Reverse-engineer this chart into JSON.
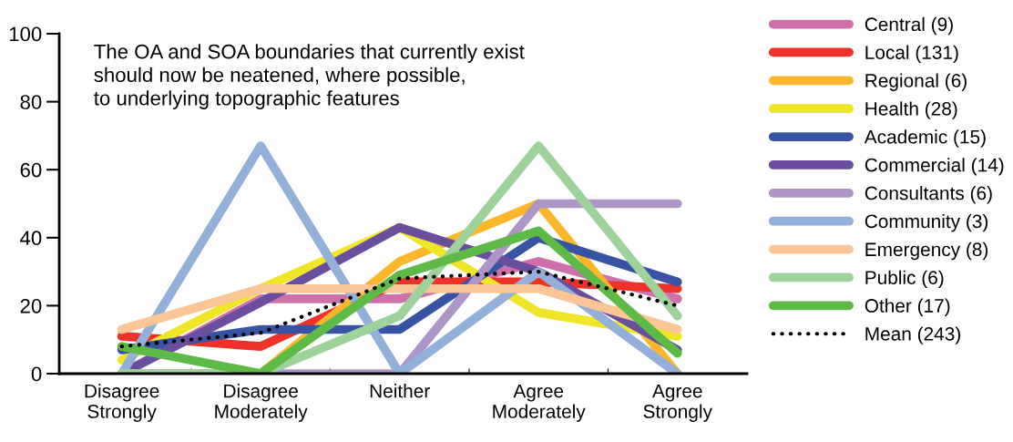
{
  "chart_data": {
    "type": "line",
    "title": "The OA and SOA boundaries that currently exist\nshould now be neatened, where possible,\nto underlying topographic features",
    "categories": [
      "Disagree\nStrongly",
      "Disagree\nModerately",
      "Neither",
      "Agree\nModerately",
      "Agree\nStrongly"
    ],
    "ylim": [
      0,
      100
    ],
    "yticks": [
      0,
      20,
      40,
      60,
      80,
      100
    ],
    "grid": false,
    "legend": "right",
    "marker": "none",
    "line_style": "solid",
    "series": [
      {
        "name": "Central (9)",
        "color": "#d070aa",
        "values": [
          0,
          22,
          22,
          33,
          22
        ]
      },
      {
        "name": "Local (131)",
        "color": "#ee3129",
        "values": [
          11,
          8,
          27,
          27,
          25
        ]
      },
      {
        "name": "Regional (6)",
        "color": "#fbb62b",
        "values": [
          0,
          0,
          33,
          50,
          0
        ]
      },
      {
        "name": "Health (28)",
        "color": "#efe629",
        "values": [
          4,
          25,
          43,
          18,
          11
        ]
      },
      {
        "name": "Academic (15)",
        "color": "#3853a4",
        "values": [
          7,
          13,
          13,
          40,
          27
        ]
      },
      {
        "name": "Commercial (14)",
        "color": "#6a4f9f",
        "values": [
          0,
          21,
          43,
          30,
          7
        ]
      },
      {
        "name": "Consultants (6)",
        "color": "#ad95c8",
        "values": [
          0,
          0,
          0,
          50,
          50
        ]
      },
      {
        "name": "Community (3)",
        "color": "#93b0db",
        "values": [
          0,
          67,
          0,
          30,
          0
        ]
      },
      {
        "name": "Emergency (8)",
        "color": "#fcc595",
        "values": [
          13,
          25,
          25,
          25,
          13
        ]
      },
      {
        "name": "Public (6)",
        "color": "#9dd39b",
        "values": [
          0,
          0,
          17,
          67,
          17
        ]
      },
      {
        "name": "Other (17)",
        "color": "#5dba47",
        "values": [
          8,
          0,
          29,
          42,
          6
        ]
      },
      {
        "name": "Mean (243)",
        "color": "#000000",
        "values": [
          8,
          12,
          28,
          30,
          20
        ],
        "line_style": "dotted"
      }
    ]
  }
}
